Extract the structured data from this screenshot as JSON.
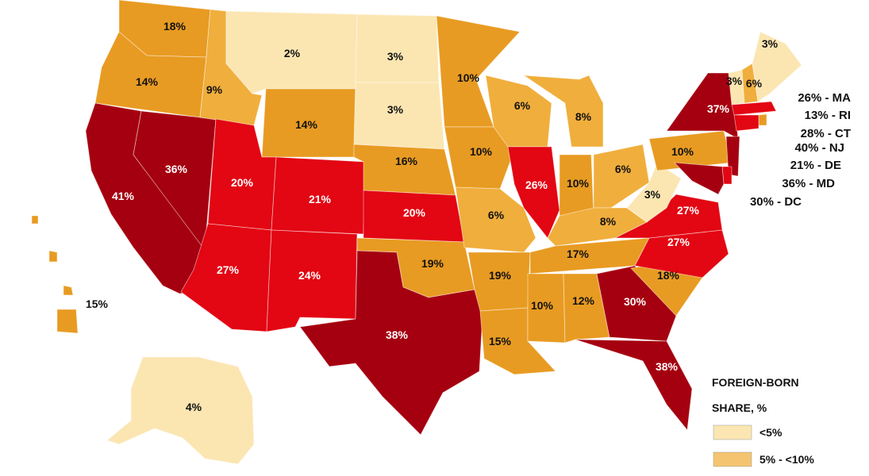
{
  "colors": {
    "lt5": "#fbe6b2",
    "5to10": "#f0ae3c",
    "10to20": "#e89b22",
    "20to30": "#e30613",
    "gt30": "#a50010",
    "border": "#ffffff"
  },
  "states": [
    {
      "code": "WA",
      "label": "18%",
      "value": 18
    },
    {
      "code": "OR",
      "label": "14%",
      "value": 14
    },
    {
      "code": "CA",
      "label": "41%",
      "value": 41
    },
    {
      "code": "NV",
      "label": "36%",
      "value": 36
    },
    {
      "code": "ID",
      "label": "9%",
      "value": 9
    },
    {
      "code": "MT",
      "label": "2%",
      "value": 2
    },
    {
      "code": "WY",
      "label": "14%",
      "value": 14
    },
    {
      "code": "UT",
      "label": "20%",
      "value": 20
    },
    {
      "code": "AZ",
      "label": "27%",
      "value": 27
    },
    {
      "code": "CO",
      "label": "21%",
      "value": 21
    },
    {
      "code": "NM",
      "label": "24%",
      "value": 24
    },
    {
      "code": "ND",
      "label": "3%",
      "value": 3
    },
    {
      "code": "SD",
      "label": "3%",
      "value": 3
    },
    {
      "code": "NE",
      "label": "16%",
      "value": 16
    },
    {
      "code": "KS",
      "label": "20%",
      "value": 20
    },
    {
      "code": "OK",
      "label": "19%",
      "value": 19
    },
    {
      "code": "TX",
      "label": "38%",
      "value": 38
    },
    {
      "code": "MN",
      "label": "10%",
      "value": 10
    },
    {
      "code": "IA",
      "label": "10%",
      "value": 10
    },
    {
      "code": "MO",
      "label": "6%",
      "value": 6
    },
    {
      "code": "AR",
      "label": "19%",
      "value": 19
    },
    {
      "code": "LA",
      "label": "15%",
      "value": 15
    },
    {
      "code": "WI",
      "label": "6%",
      "value": 6
    },
    {
      "code": "IL",
      "label": "26%",
      "value": 26
    },
    {
      "code": "MI",
      "label": "8%",
      "value": 8
    },
    {
      "code": "IN",
      "label": "10%",
      "value": 10
    },
    {
      "code": "OH",
      "label": "6%",
      "value": 6
    },
    {
      "code": "KY",
      "label": "8%",
      "value": 8
    },
    {
      "code": "TN",
      "label": "17%",
      "value": 17
    },
    {
      "code": "MS",
      "label": "10%",
      "value": 10
    },
    {
      "code": "AL",
      "label": "12%",
      "value": 12
    },
    {
      "code": "GA",
      "label": "30%",
      "value": 30
    },
    {
      "code": "FL",
      "label": "38%",
      "value": 38
    },
    {
      "code": "SC",
      "label": "18%",
      "value": 18
    },
    {
      "code": "NC",
      "label": "27%",
      "value": 27
    },
    {
      "code": "VA",
      "label": "27%",
      "value": 27
    },
    {
      "code": "WV",
      "label": "3%",
      "value": 3
    },
    {
      "code": "PA",
      "label": "10%",
      "value": 10
    },
    {
      "code": "NY",
      "label": "37%",
      "value": 37
    },
    {
      "code": "VT",
      "label": "3%",
      "value": 3
    },
    {
      "code": "NH",
      "label": "6%",
      "value": 6
    },
    {
      "code": "ME",
      "label": "3%",
      "value": 3
    },
    {
      "code": "MA",
      "label": "",
      "value": 26
    },
    {
      "code": "RI",
      "label": "",
      "value": 13
    },
    {
      "code": "CT",
      "label": "",
      "value": 28
    },
    {
      "code": "NJ",
      "label": "",
      "value": 40
    },
    {
      "code": "DE",
      "label": "",
      "value": 21
    },
    {
      "code": "MD",
      "label": "",
      "value": 36
    },
    {
      "code": "AK",
      "label": "4%",
      "value": 4
    },
    {
      "code": "HI",
      "label": "15%",
      "value": 15
    }
  ],
  "callouts": [
    {
      "text": "26% - MA"
    },
    {
      "text": "13% - RI"
    },
    {
      "text": "28% - CT"
    },
    {
      "text": "40% - NJ"
    },
    {
      "text": "21% - DE"
    },
    {
      "text": "36% - MD"
    },
    {
      "text": "30% - DC"
    }
  ],
  "legend": {
    "title_line1": "FOREIGN-BORN",
    "title_line2": "SHARE, %",
    "items": [
      {
        "label": "<5%",
        "color": "#fbe6b2"
      },
      {
        "label": "5% - <10%",
        "color": "#f5c470"
      }
    ]
  }
}
